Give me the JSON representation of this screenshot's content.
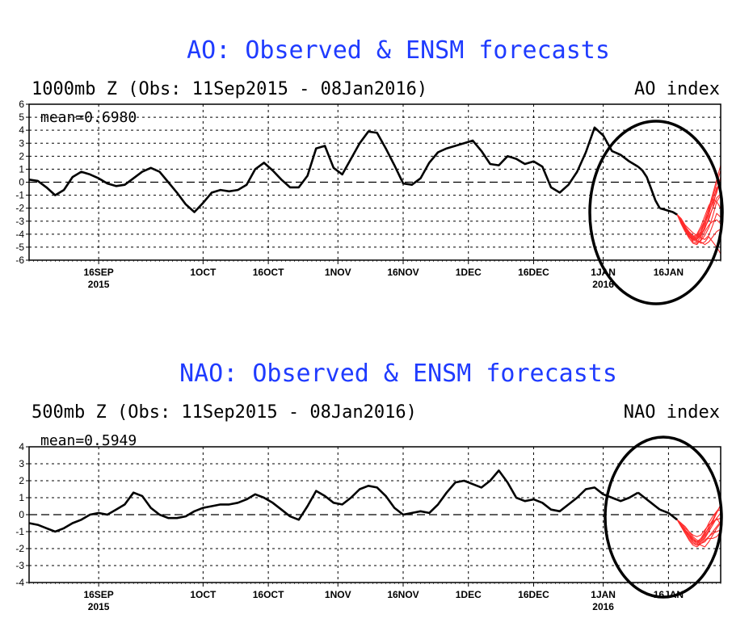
{
  "chart_data": [
    {
      "type": "line",
      "title": "AO: Observed & ENSM forecasts",
      "subtitle": "1000mb Z (Obs: 11Sep2015 - 08Jan2016)",
      "index_label": "AO index",
      "mean_label": "mean=0.6980",
      "ylim": [
        -6,
        6
      ],
      "yticks": [
        "6",
        "5",
        "4",
        "3",
        "2",
        "1",
        "0",
        "-1",
        "-2",
        "-3",
        "-4",
        "-5",
        "-6"
      ],
      "xticks": [
        {
          "day": 16,
          "label": "16SEP",
          "sub": "2015"
        },
        {
          "day": 40,
          "label": "1OCT",
          "sub": ""
        },
        {
          "day": 55,
          "label": "16OCT",
          "sub": ""
        },
        {
          "day": 71,
          "label": "1NOV",
          "sub": ""
        },
        {
          "day": 86,
          "label": "16NOV",
          "sub": ""
        },
        {
          "day": 101,
          "label": "1DEC",
          "sub": ""
        },
        {
          "day": 116,
          "label": "16DEC",
          "sub": ""
        },
        {
          "day": 132,
          "label": "1JAN",
          "sub": "2016"
        },
        {
          "day": 147,
          "label": "16JAN",
          "sub": ""
        }
      ],
      "series": [
        {
          "x": [
            0,
            2,
            4,
            6,
            8,
            10,
            12,
            14,
            16,
            18,
            20,
            22,
            24,
            26,
            28,
            30,
            32,
            34,
            36,
            38,
            40,
            42,
            44,
            46,
            48,
            50,
            52,
            54,
            56,
            58,
            60,
            62,
            64,
            66,
            68,
            70,
            72,
            74,
            76,
            78,
            80,
            82,
            84,
            86,
            88,
            90,
            92,
            94,
            96,
            98,
            100,
            102,
            104,
            106,
            108,
            110,
            112,
            114,
            116,
            118,
            120,
            122,
            124,
            126,
            128,
            130,
            132,
            134,
            136,
            138,
            140
          ],
          "y": [
            0.2,
            0.1,
            -0.4,
            -1.0,
            -0.6,
            0.4,
            0.8,
            0.6,
            0.3,
            -0.1,
            -0.3,
            -0.2,
            0.3,
            0.8,
            1.1,
            0.8,
            0.0,
            -0.8,
            -1.7,
            -2.3,
            -1.6,
            -0.8,
            -0.6,
            -0.7,
            -0.6,
            -0.2,
            1.0,
            1.5,
            0.9,
            0.2,
            -0.4,
            -0.4,
            0.5,
            2.6,
            2.8,
            1.1,
            0.6,
            1.8,
            3.0,
            3.9,
            3.8,
            2.6,
            1.3,
            -0.1,
            -0.2,
            0.3,
            1.5,
            2.3,
            2.6,
            2.8,
            3.0,
            3.2,
            2.4,
            1.4,
            1.3,
            2.0,
            1.8,
            1.4,
            1.6,
            1.2,
            -0.4,
            -0.8,
            -0.2,
            0.8,
            2.3,
            4.2,
            3.6,
            2.4,
            2.1,
            1.6,
            1.2
          ]
        },
        {
          "x": [
            140,
            141,
            142,
            143,
            144,
            145
          ],
          "y": [
            1.2,
            0.9,
            0.4,
            -0.5,
            -1.4,
            -2.0
          ]
        },
        {
          "x": [
            145,
            146,
            147,
            148,
            149
          ],
          "y": [
            -2.0,
            -2.1,
            -2.2,
            -2.3,
            -2.5
          ]
        }
      ],
      "ensemble": {
        "start_day": 149,
        "start_value": -2.5,
        "end_day": 159,
        "members": [
          [
            -2.5,
            -3.0,
            -3.6,
            -4.0,
            -4.3,
            -4.1,
            -3.6,
            -2.9,
            -2.0,
            -0.9,
            0.2,
            1.3
          ],
          [
            -2.5,
            -3.1,
            -3.5,
            -3.9,
            -4.4,
            -4.6,
            -4.2,
            -3.4,
            -2.2,
            -1.1,
            -0.1,
            0.9
          ],
          [
            -2.5,
            -2.9,
            -3.4,
            -3.8,
            -4.1,
            -4.4,
            -4.0,
            -3.5,
            -2.9,
            -1.9,
            -0.6,
            0.3
          ],
          [
            -2.5,
            -3.2,
            -3.8,
            -4.2,
            -4.5,
            -4.3,
            -3.9,
            -3.2,
            -2.5,
            -1.4,
            -0.4,
            -0.5
          ],
          [
            -2.5,
            -3.0,
            -3.6,
            -4.1,
            -4.6,
            -4.7,
            -4.5,
            -4.1,
            -3.5,
            -2.6,
            -1.5,
            -1.0
          ],
          [
            -2.5,
            -3.1,
            -3.7,
            -4.0,
            -4.2,
            -4.0,
            -3.4,
            -2.6,
            -1.8,
            -1.3,
            -1.5,
            -2.0
          ],
          [
            -2.5,
            -2.8,
            -3.3,
            -3.6,
            -3.9,
            -4.1,
            -4.3,
            -4.4,
            -4.1,
            -3.3,
            -2.4,
            -2.7
          ],
          [
            -2.5,
            -3.0,
            -3.5,
            -3.9,
            -4.3,
            -4.5,
            -4.6,
            -4.8,
            -4.6,
            -4.2,
            -3.8,
            -3.6
          ],
          [
            -2.5,
            -3.1,
            -3.6,
            -4.1,
            -4.4,
            -4.2,
            -3.8,
            -3.0,
            -2.3,
            -1.6,
            -0.8,
            0.4
          ],
          [
            -2.5,
            -2.9,
            -3.4,
            -3.9,
            -4.2,
            -4.5,
            -4.7,
            -4.6,
            -4.2,
            -4.6,
            -5.0,
            -5.5
          ],
          [
            -2.5,
            -3.0,
            -3.7,
            -4.2,
            -4.4,
            -4.4,
            -4.1,
            -3.6,
            -2.7,
            -2.0,
            -1.2,
            -0.9
          ],
          [
            -2.5,
            -3.2,
            -3.8,
            -4.3,
            -4.7,
            -4.8,
            -4.4,
            -3.8,
            -3.3,
            -3.0,
            -2.9,
            -3.2
          ]
        ]
      }
    },
    {
      "type": "line",
      "title": "NAO: Observed & ENSM forecasts",
      "subtitle": "500mb Z (Obs: 11Sep2015 - 08Jan2016)",
      "index_label": "NAO index",
      "mean_label": "mean=0.5949",
      "ylim": [
        -4,
        4
      ],
      "yticks": [
        "4",
        "3",
        "2",
        "1",
        "0",
        "-1",
        "-2",
        "-3",
        "-4"
      ],
      "xticks": [
        {
          "day": 16,
          "label": "16SEP",
          "sub": "2015"
        },
        {
          "day": 40,
          "label": "1OCT",
          "sub": ""
        },
        {
          "day": 55,
          "label": "16OCT",
          "sub": ""
        },
        {
          "day": 71,
          "label": "1NOV",
          "sub": ""
        },
        {
          "day": 86,
          "label": "16NOV",
          "sub": ""
        },
        {
          "day": 101,
          "label": "1DEC",
          "sub": ""
        },
        {
          "day": 116,
          "label": "16DEC",
          "sub": ""
        },
        {
          "day": 132,
          "label": "1JAN",
          "sub": "2016"
        },
        {
          "day": 147,
          "label": "16JAN",
          "sub": ""
        }
      ],
      "series": [
        {
          "x": [
            0,
            2,
            4,
            6,
            8,
            10,
            12,
            14,
            16,
            18,
            20,
            22,
            24,
            26,
            28,
            30,
            32,
            34,
            36,
            38,
            40,
            42,
            44,
            46,
            48,
            50,
            52,
            54,
            56,
            58,
            60,
            62,
            64,
            66,
            68,
            70,
            72,
            74,
            76,
            78,
            80,
            82,
            84,
            86,
            88,
            90,
            92,
            94,
            96,
            98,
            100,
            102,
            104,
            106,
            108,
            110,
            112,
            114,
            116,
            118,
            120,
            122,
            124,
            126,
            128,
            130,
            132,
            134,
            136,
            138,
            140
          ],
          "y": [
            -0.5,
            -0.6,
            -0.8,
            -1.0,
            -0.8,
            -0.5,
            -0.3,
            0.0,
            0.1,
            0.0,
            0.3,
            0.6,
            1.3,
            1.1,
            0.4,
            0.0,
            -0.2,
            -0.2,
            -0.1,
            0.2,
            0.4,
            0.5,
            0.6,
            0.6,
            0.7,
            0.9,
            1.2,
            1.0,
            0.7,
            0.3,
            -0.1,
            -0.3,
            0.5,
            1.4,
            1.1,
            0.7,
            0.6,
            1.0,
            1.5,
            1.7,
            1.6,
            1.1,
            0.4,
            0.0,
            0.1,
            0.2,
            0.1,
            0.6,
            1.3,
            1.9,
            2.0,
            1.8,
            1.6,
            2.0,
            2.6,
            1.9,
            1.0,
            0.8,
            0.9,
            0.7,
            0.3,
            0.2,
            0.6,
            1.0,
            1.5,
            1.6,
            1.2,
            1.0,
            0.8,
            1.0,
            1.3
          ]
        },
        {
          "x": [
            140,
            141,
            142,
            143,
            144,
            145
          ],
          "y": [
            1.3,
            1.1,
            0.9,
            0.7,
            0.5,
            0.3
          ]
        },
        {
          "x": [
            145,
            146,
            147,
            148,
            149
          ],
          "y": [
            0.3,
            0.2,
            0.1,
            -0.1,
            -0.3
          ]
        }
      ],
      "ensemble": {
        "start_day": 149,
        "start_value": -0.3,
        "end_day": 159,
        "members": [
          [
            -0.3,
            -0.6,
            -0.9,
            -1.2,
            -1.5,
            -1.6,
            -1.5,
            -1.2,
            -0.7,
            -0.3,
            0.2,
            0.5
          ],
          [
            -0.3,
            -0.7,
            -1.1,
            -1.4,
            -1.7,
            -1.8,
            -1.6,
            -1.3,
            -0.9,
            -0.4,
            0.1,
            0.6
          ],
          [
            -0.3,
            -0.5,
            -0.8,
            -1.0,
            -1.3,
            -1.5,
            -1.6,
            -1.4,
            -1.0,
            -0.6,
            -0.2,
            0.1
          ],
          [
            -0.3,
            -0.6,
            -1.0,
            -1.3,
            -1.6,
            -1.8,
            -1.7,
            -1.5,
            -1.3,
            -1.0,
            -0.7,
            -0.4
          ],
          [
            -0.3,
            -0.6,
            -0.9,
            -1.1,
            -1.4,
            -1.6,
            -1.4,
            -1.0,
            -0.5,
            -0.1,
            0.2,
            0.3
          ],
          [
            -0.3,
            -0.7,
            -1.0,
            -1.3,
            -1.5,
            -1.7,
            -1.8,
            -1.9,
            -1.6,
            -1.2,
            -0.8,
            -0.5
          ],
          [
            -0.3,
            -0.5,
            -0.7,
            -1.0,
            -1.2,
            -1.3,
            -1.2,
            -0.9,
            -0.6,
            -0.4,
            -0.3,
            -0.2
          ],
          [
            -0.3,
            -0.6,
            -1.0,
            -1.2,
            -1.4,
            -1.6,
            -1.7,
            -1.6,
            -1.3,
            -1.1,
            -1.0,
            -0.9
          ],
          [
            -0.3,
            -0.6,
            -0.9,
            -1.2,
            -1.5,
            -1.7,
            -1.5,
            -1.1,
            -0.8,
            -0.5,
            -0.2,
            -0.6
          ],
          [
            -0.3,
            -0.7,
            -1.1,
            -1.5,
            -1.8,
            -1.9,
            -1.7,
            -1.5,
            -1.4,
            -1.4,
            -1.3,
            -1.0
          ]
        ]
      }
    }
  ]
}
